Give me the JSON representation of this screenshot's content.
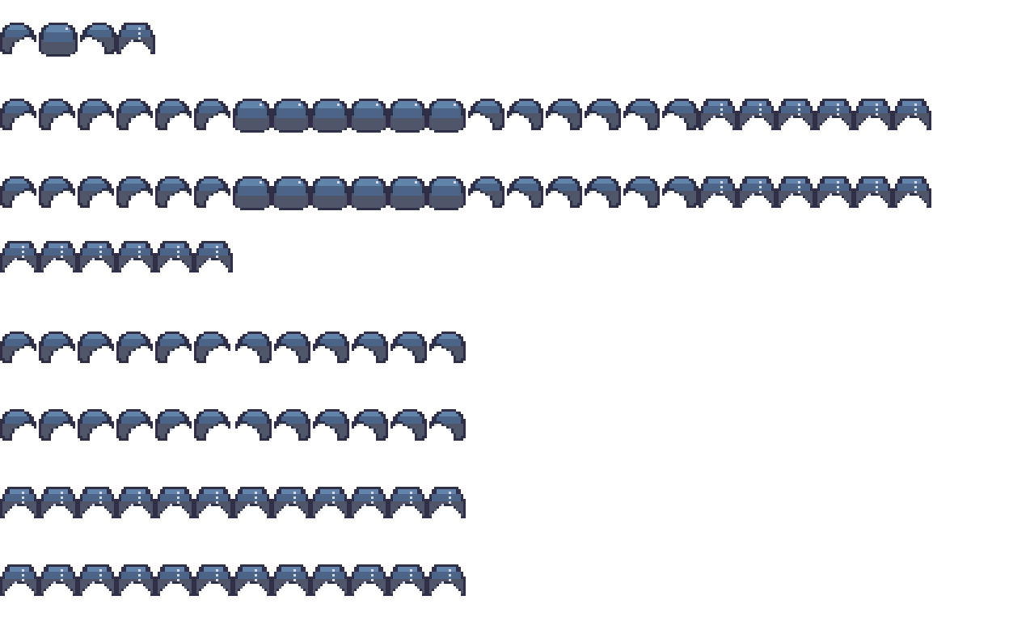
{
  "sprite_sheet": {
    "colors": {
      "outline": "#2f3047",
      "highlight": "#6384aa",
      "body": "#4b6487",
      "shadow": "#50566a",
      "shine": "#d8dde6"
    },
    "rows": [
      {
        "frames": [
          "side-left",
          "round",
          "side-right",
          "front"
        ]
      },
      {
        "frames": [
          "side-left",
          "side-left",
          "side-left",
          "side-left",
          "side-left",
          "side-left",
          "round",
          "round",
          "round",
          "round",
          "round",
          "round",
          "side-right",
          "side-right",
          "side-right",
          "side-right",
          "side-right",
          "side-right",
          "front",
          "front",
          "front",
          "front",
          "front",
          "front"
        ]
      },
      {
        "frames": [
          "side-left",
          "side-left",
          "side-left",
          "side-left",
          "side-left",
          "side-left",
          "round",
          "round",
          "round",
          "round",
          "round",
          "round",
          "side-right",
          "side-right",
          "side-right",
          "side-right",
          "side-right",
          "side-right",
          "front",
          "front",
          "front",
          "front",
          "front",
          "front"
        ]
      },
      {
        "frames": [
          "front",
          "front",
          "front",
          "front",
          "front",
          "front"
        ]
      },
      {
        "frames": [
          "side-left",
          "side-left",
          "side-left",
          "side-left",
          "side-left",
          "side-left",
          "side-right",
          "side-right",
          "side-right",
          "side-right",
          "side-right",
          "side-right"
        ]
      },
      {
        "frames": [
          "side-left",
          "side-left",
          "side-left",
          "side-left",
          "side-left",
          "side-left",
          "side-right",
          "side-right",
          "side-right",
          "side-right",
          "side-right",
          "side-right"
        ]
      },
      {
        "frames": [
          "front",
          "front",
          "front",
          "front",
          "front",
          "front",
          "front",
          "front",
          "front",
          "front",
          "front",
          "front"
        ]
      },
      {
        "frames": [
          "front",
          "front",
          "front",
          "front",
          "front",
          "front",
          "front",
          "front",
          "front",
          "front",
          "front",
          "front"
        ]
      }
    ]
  }
}
